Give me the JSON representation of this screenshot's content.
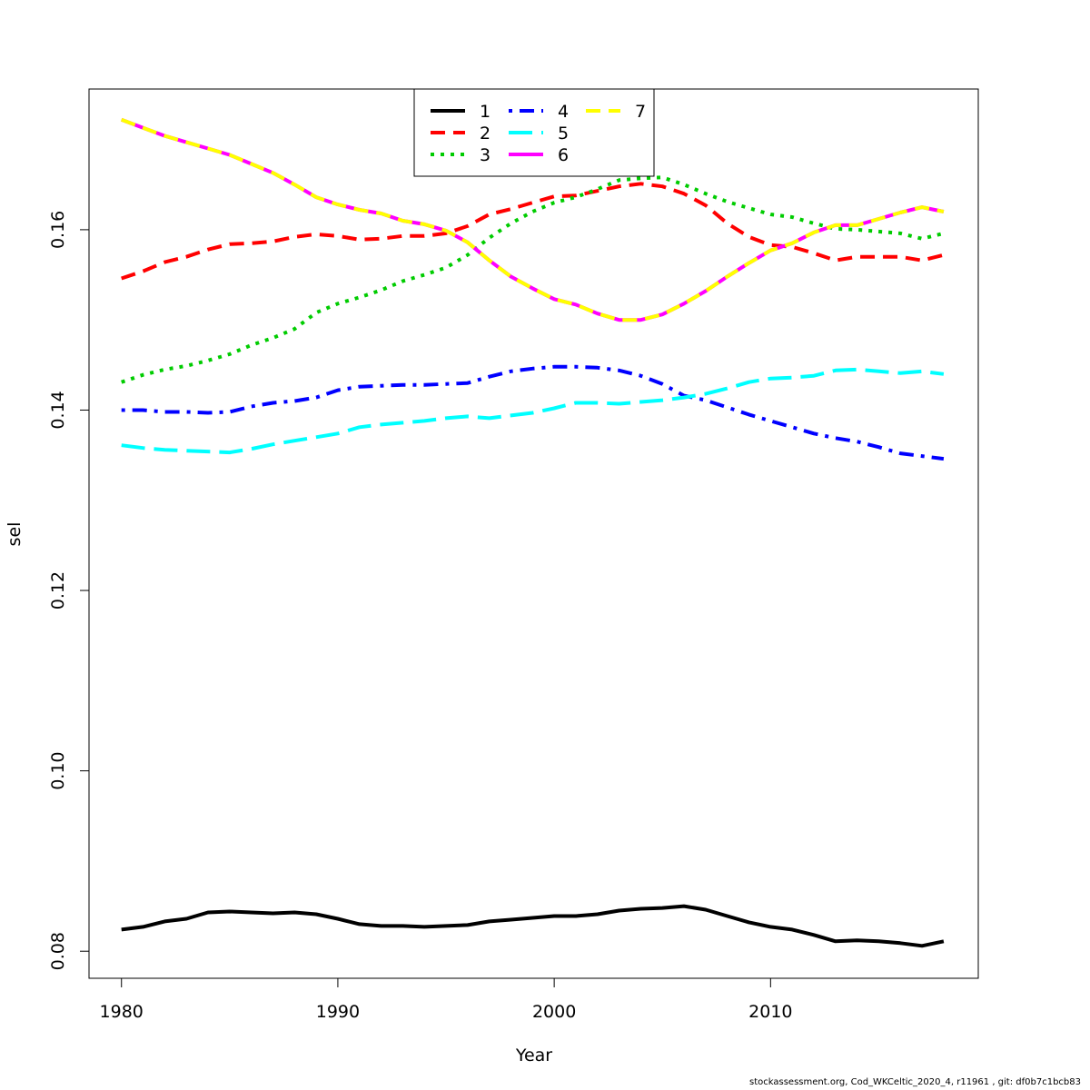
{
  "chart_data": {
    "type": "line",
    "xlabel": "Year",
    "ylabel": "sel",
    "xlim": [
      1978.5,
      2019.6
    ],
    "ylim": [
      0.077,
      0.1756
    ],
    "x_ticks": [
      1980,
      1990,
      2000,
      2010
    ],
    "y_ticks": [
      0.08,
      0.1,
      0.12,
      0.14,
      0.16
    ],
    "y_tick_labels": [
      "0.08",
      "0.10",
      "0.12",
      "0.14",
      "0.16"
    ],
    "legend_position": "top-center",
    "x": [
      1980,
      1981,
      1982,
      1983,
      1984,
      1985,
      1986,
      1987,
      1988,
      1989,
      1990,
      1991,
      1992,
      1993,
      1994,
      1995,
      1996,
      1997,
      1998,
      1999,
      2000,
      2001,
      2002,
      2003,
      2004,
      2005,
      2006,
      2007,
      2008,
      2009,
      2010,
      2011,
      2012,
      2013,
      2014,
      2015,
      2016,
      2017,
      2018
    ],
    "series": [
      {
        "name": "1",
        "color": "#000000",
        "dash": "solid",
        "values": [
          0.0824,
          0.0827,
          0.0833,
          0.0836,
          0.0843,
          0.0844,
          0.0843,
          0.0842,
          0.0843,
          0.0841,
          0.0836,
          0.083,
          0.0828,
          0.0828,
          0.0827,
          0.0828,
          0.0829,
          0.0833,
          0.0835,
          0.0837,
          0.0839,
          0.0839,
          0.0841,
          0.0845,
          0.0847,
          0.0848,
          0.085,
          0.0846,
          0.0839,
          0.0832,
          0.0827,
          0.0824,
          0.0818,
          0.0811,
          0.0812,
          0.0811,
          0.0809,
          0.0806,
          0.0811
        ]
      },
      {
        "name": "2",
        "color": "#ff0000",
        "dash": "dashed",
        "values": [
          0.1546,
          0.1554,
          0.1564,
          0.157,
          0.1578,
          0.1584,
          0.1585,
          0.1587,
          0.1592,
          0.1595,
          0.1593,
          0.1589,
          0.159,
          0.1593,
          0.1593,
          0.1596,
          0.1604,
          0.1617,
          0.1623,
          0.163,
          0.1637,
          0.1638,
          0.1643,
          0.1648,
          0.1651,
          0.1648,
          0.164,
          0.1627,
          0.1607,
          0.1592,
          0.1583,
          0.1581,
          0.1574,
          0.1566,
          0.157,
          0.157,
          0.157,
          0.1566,
          0.1572
        ]
      },
      {
        "name": "3",
        "color": "#00cc00",
        "dash": "dotted",
        "values": [
          0.1431,
          0.1439,
          0.1445,
          0.1449,
          0.1455,
          0.1462,
          0.1472,
          0.148,
          0.149,
          0.1508,
          0.1518,
          0.1525,
          0.1533,
          0.1543,
          0.155,
          0.1558,
          0.1572,
          0.1591,
          0.1607,
          0.162,
          0.163,
          0.1636,
          0.1645,
          0.1655,
          0.1657,
          0.1658,
          0.165,
          0.164,
          0.1631,
          0.1624,
          0.1617,
          0.1614,
          0.1607,
          0.1601,
          0.16,
          0.1598,
          0.1596,
          0.159,
          0.1596
        ]
      },
      {
        "name": "4",
        "color": "#0000ff",
        "dash": "dotdash",
        "values": [
          0.14,
          0.14,
          0.1398,
          0.1398,
          0.1397,
          0.1398,
          0.1404,
          0.1408,
          0.141,
          0.1414,
          0.1422,
          0.1426,
          0.1427,
          0.1428,
          0.1428,
          0.1429,
          0.143,
          0.1437,
          0.1443,
          0.1446,
          0.1448,
          0.1448,
          0.1447,
          0.1444,
          0.1438,
          0.1429,
          0.1416,
          0.1411,
          0.1403,
          0.1395,
          0.1388,
          0.1381,
          0.1374,
          0.1369,
          0.1365,
          0.1359,
          0.1352,
          0.1349,
          0.1346
        ]
      },
      {
        "name": "5",
        "color": "#00ffff",
        "dash": "longdash",
        "values": [
          0.1361,
          0.1358,
          0.1356,
          0.1355,
          0.1354,
          0.1353,
          0.1357,
          0.1362,
          0.1366,
          0.137,
          0.1374,
          0.1381,
          0.1384,
          0.1386,
          0.1388,
          0.1391,
          0.1393,
          0.1391,
          0.1394,
          0.1397,
          0.1402,
          0.1408,
          0.1408,
          0.1407,
          0.1409,
          0.1411,
          0.1414,
          0.1418,
          0.1424,
          0.1431,
          0.1435,
          0.1436,
          0.1438,
          0.1444,
          0.1445,
          0.1443,
          0.1441,
          0.1443,
          0.144
        ]
      },
      {
        "name": "6",
        "color": "#ff00ff",
        "dash": "solid",
        "values": [
          0.1722,
          0.1713,
          0.1704,
          0.1697,
          0.169,
          0.1683,
          0.1673,
          0.1663,
          0.165,
          0.1636,
          0.1628,
          0.1622,
          0.1618,
          0.161,
          0.1606,
          0.1599,
          0.1586,
          0.1566,
          0.1548,
          0.1535,
          0.1523,
          0.1517,
          0.1507,
          0.15,
          0.15,
          0.1506,
          0.1518,
          0.1532,
          0.1548,
          0.1563,
          0.1577,
          0.1585,
          0.1597,
          0.1605,
          0.1605,
          0.1612,
          0.1619,
          0.1625,
          0.162
        ]
      },
      {
        "name": "7",
        "color": "#ffff00",
        "dash": "dashed",
        "values": [
          0.1722,
          0.1713,
          0.1704,
          0.1697,
          0.169,
          0.1683,
          0.1673,
          0.1663,
          0.165,
          0.1636,
          0.1628,
          0.1622,
          0.1618,
          0.161,
          0.1606,
          0.1599,
          0.1586,
          0.1566,
          0.1548,
          0.1535,
          0.1523,
          0.1517,
          0.1507,
          0.15,
          0.15,
          0.1506,
          0.1518,
          0.1532,
          0.1548,
          0.1563,
          0.1577,
          0.1585,
          0.1597,
          0.1605,
          0.1605,
          0.1612,
          0.1619,
          0.1625,
          0.162
        ]
      }
    ]
  },
  "footer": "stockassessment.org, Cod_WKCeltic_2020_4, r11961 , git: df0b7c1bcb83"
}
